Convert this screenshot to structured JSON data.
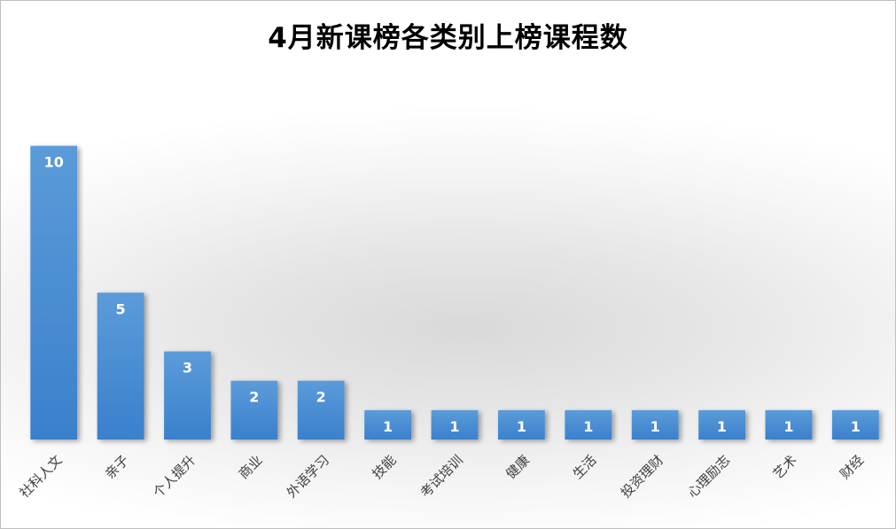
{
  "chart_data": {
    "type": "bar",
    "title": "4月新课榜各类别上榜课程数",
    "categories": [
      "社科人文",
      "亲子",
      "个人提升",
      "商业",
      "外语学习",
      "技能",
      "考试培训",
      "健康",
      "生活",
      "投资理财",
      "心理励志",
      "艺术",
      "财经"
    ],
    "values": [
      10,
      5,
      3,
      2,
      2,
      1,
      1,
      1,
      1,
      1,
      1,
      1,
      1
    ],
    "ylim": [
      0,
      14
    ],
    "grid": false,
    "legend": "none",
    "bar_color": "#4a8fd6",
    "label_color": "#ffffff"
  }
}
